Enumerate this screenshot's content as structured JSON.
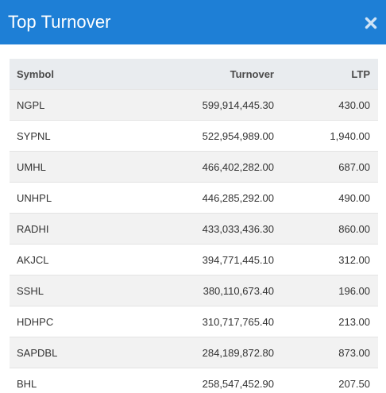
{
  "header": {
    "title": "Top Turnover",
    "close_icon": "close-icon",
    "background": "#1e7fd6"
  },
  "table": {
    "columns": [
      "Symbol",
      "Turnover",
      "LTP"
    ],
    "rows": [
      {
        "symbol": "NGPL",
        "turnover": "599,914,445.30",
        "ltp": "430.00"
      },
      {
        "symbol": "SYPNL",
        "turnover": "522,954,989.00",
        "ltp": "1,940.00"
      },
      {
        "symbol": "UMHL",
        "turnover": "466,402,282.00",
        "ltp": "687.00"
      },
      {
        "symbol": "UNHPL",
        "turnover": "446,285,292.00",
        "ltp": "490.00"
      },
      {
        "symbol": "RADHI",
        "turnover": "433,033,436.30",
        "ltp": "860.00"
      },
      {
        "symbol": "AKJCL",
        "turnover": "394,771,445.10",
        "ltp": "312.00"
      },
      {
        "symbol": "SSHL",
        "turnover": "380,110,673.40",
        "ltp": "196.00"
      },
      {
        "symbol": "HDHPC",
        "turnover": "310,717,765.40",
        "ltp": "213.00"
      },
      {
        "symbol": "SAPDBL",
        "turnover": "284,189,872.80",
        "ltp": "873.00"
      },
      {
        "symbol": "BHL",
        "turnover": "258,547,452.90",
        "ltp": "207.50"
      }
    ]
  }
}
